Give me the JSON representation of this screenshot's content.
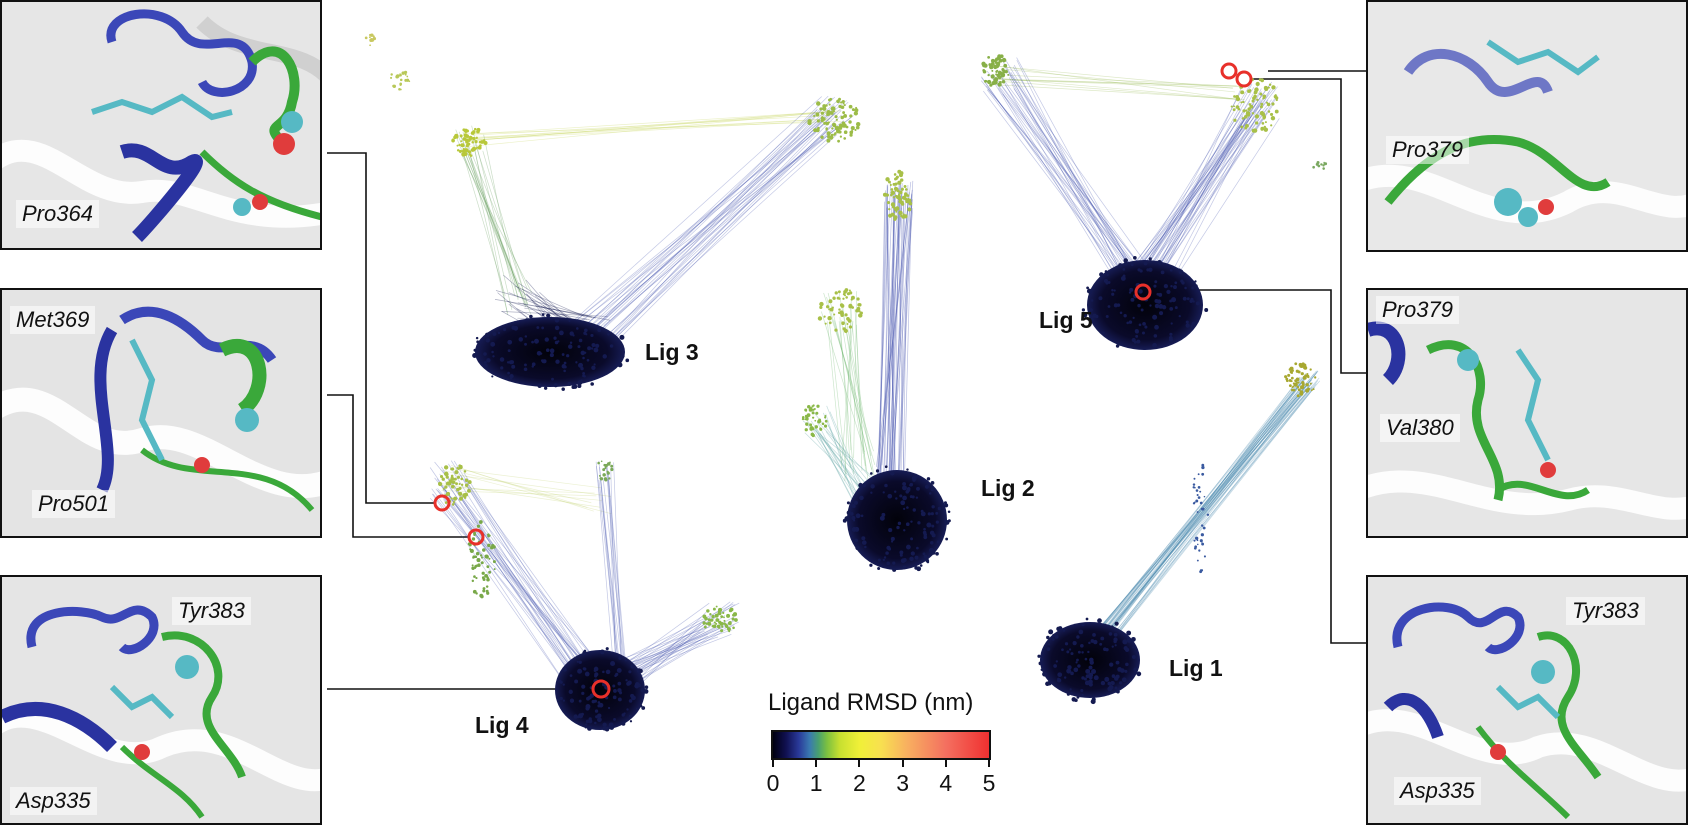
{
  "colors": {
    "chain_blue": "#3b47b8",
    "chain_green": "#3aa83a",
    "ligand_teal": "#56b9c4",
    "oxygen_red": "#e03c3c",
    "highlight_red": "#e8302a"
  },
  "panels": [
    {
      "id": "p364",
      "labels": [
        "Pro364"
      ]
    },
    {
      "id": "p369",
      "labels": [
        "Met369",
        "Pro501"
      ]
    },
    {
      "id": "p383l",
      "labels": [
        "Tyr383",
        "Asp335"
      ]
    },
    {
      "id": "p379a",
      "labels": [
        "Pro379"
      ]
    },
    {
      "id": "p379b",
      "labels": [
        "Pro379",
        "Val380"
      ]
    },
    {
      "id": "p383r",
      "labels": [
        "Tyr383",
        "Asp335"
      ]
    }
  ],
  "networks": [
    {
      "id": "lig1",
      "label": "Lig 1"
    },
    {
      "id": "lig2",
      "label": "Lig 2"
    },
    {
      "id": "lig3",
      "label": "Lig 3"
    },
    {
      "id": "lig4",
      "label": "Lig 4"
    },
    {
      "id": "lig5",
      "label": "Lig 5"
    }
  ],
  "legend": {
    "title": "Ligand RMSD (nm)",
    "ticks": [
      "0",
      "1",
      "2",
      "3",
      "4",
      "5"
    ],
    "range": [
      0,
      5
    ]
  }
}
